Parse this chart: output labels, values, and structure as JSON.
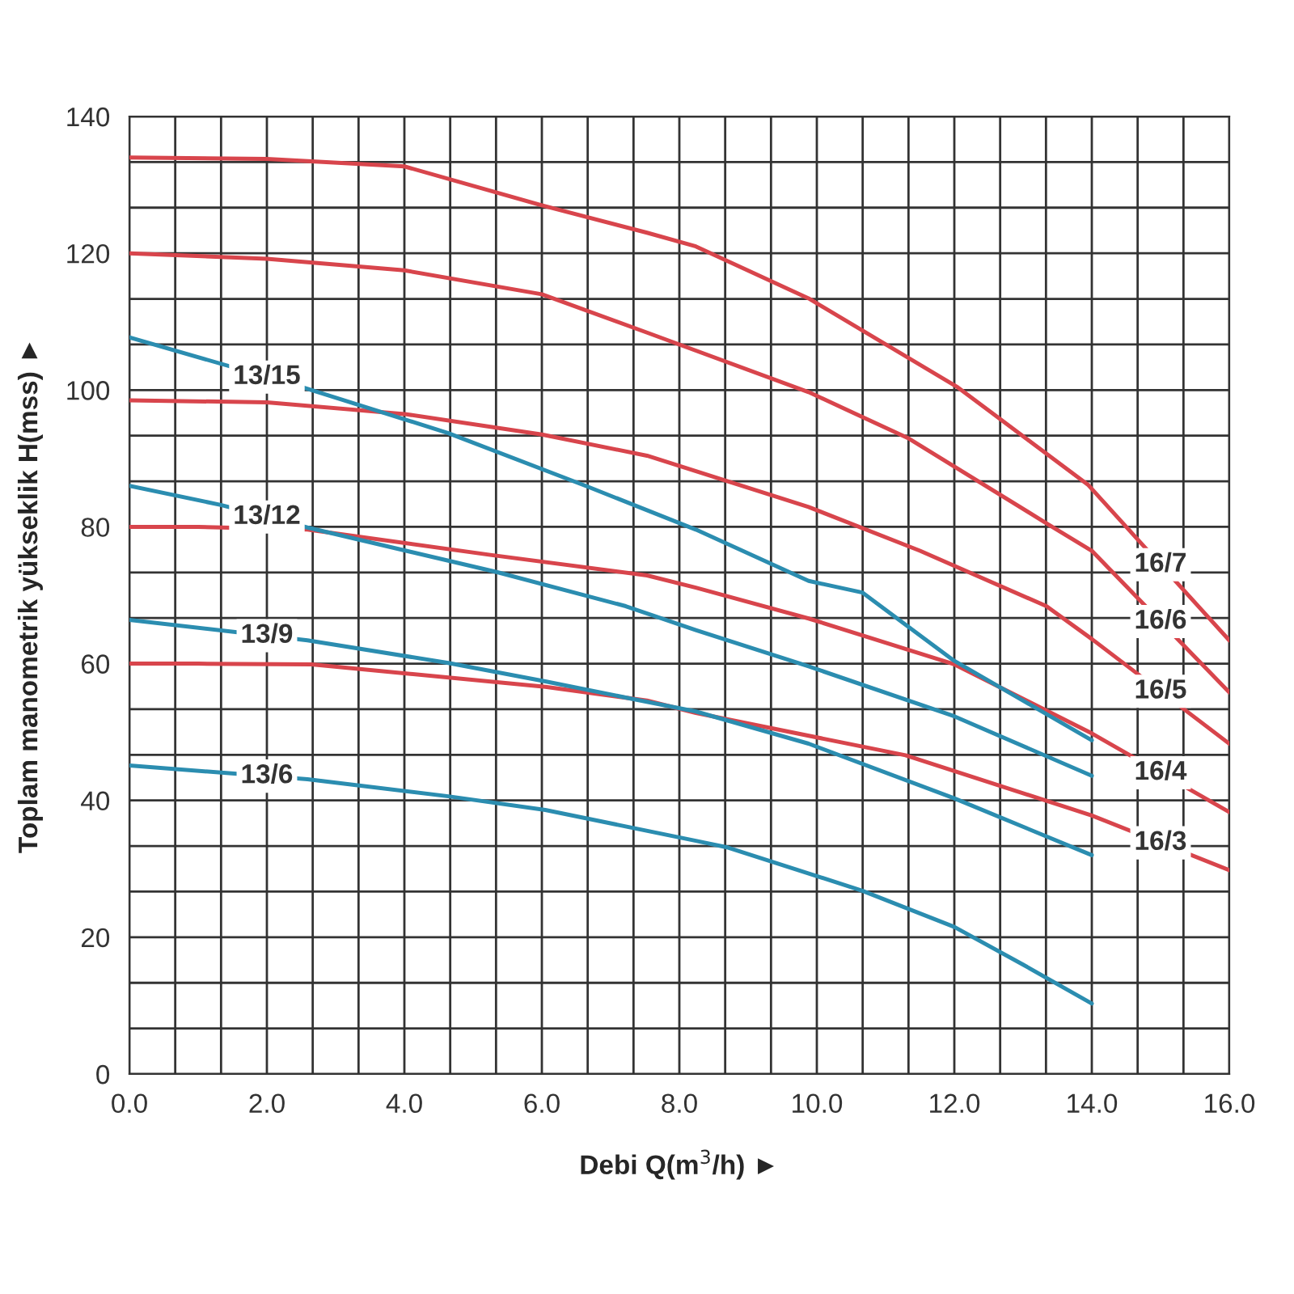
{
  "chart_data": {
    "type": "line",
    "xlabel": "Debi Q(m$^{3}$/h) ►",
    "ylabel": "Toplam manometrik yükseklik H(mss) ►",
    "xlim": [
      0,
      16
    ],
    "ylim": [
      0,
      140
    ],
    "xticks": [
      {
        "value": 0,
        "label": "0.0"
      },
      {
        "value": 2,
        "label": "2.0"
      },
      {
        "value": 4,
        "label": "4.0"
      },
      {
        "value": 6,
        "label": "6.0"
      },
      {
        "value": 8,
        "label": "8.0"
      },
      {
        "value": 10,
        "label": "10.0"
      },
      {
        "value": 12,
        "label": "12.0"
      },
      {
        "value": 14,
        "label": "14.0"
      },
      {
        "value": 16,
        "label": "16.0"
      }
    ],
    "yticks": [
      0,
      20,
      40,
      60,
      80,
      100,
      120,
      140
    ],
    "grid": true,
    "marker": "none",
    "line_style": "solid",
    "legend": false,
    "series": [
      {
        "name": "16/7",
        "color": "#d8454c",
        "x": [
          0,
          2,
          4,
          6,
          7.53,
          8.24,
          9.88,
          12.05,
          13.95,
          16
        ],
        "values": [
          134,
          133.8,
          132.7,
          127,
          123,
          121,
          113.4,
          100.4,
          86.1,
          63.4
        ]
      },
      {
        "name": "16/6",
        "color": "#d8454c",
        "x": [
          0,
          2,
          4,
          6,
          7.53,
          9.88,
          11.34,
          13.36,
          14,
          16
        ],
        "values": [
          120,
          119.2,
          117.5,
          114,
          108.4,
          99.7,
          92.9,
          80.4,
          76.5,
          55.8
        ]
      },
      {
        "name": "16/5",
        "color": "#d8454c",
        "x": [
          0,
          2,
          4,
          6,
          7.53,
          9.88,
          11.5,
          13.34,
          14,
          16
        ],
        "values": [
          98.5,
          98.2,
          96.5,
          93.5,
          90.4,
          82.9,
          76.5,
          68.4,
          63.6,
          48.3
        ]
      },
      {
        "name": "16/4",
        "color": "#d8454c",
        "x": [
          0,
          1,
          2.59,
          5.25,
          7.53,
          8.24,
          9.88,
          12,
          14,
          16
        ],
        "values": [
          80,
          80,
          79.6,
          75.9,
          72.9,
          71.1,
          66.6,
          59.9,
          49.8,
          38.3
        ]
      },
      {
        "name": "16/3",
        "color": "#d8454c",
        "x": [
          0,
          1,
          2.65,
          6.05,
          7.53,
          8.24,
          11.29,
          14,
          16
        ],
        "values": [
          60,
          60,
          59.9,
          56.6,
          54.6,
          52.8,
          46.6,
          37.8,
          29.8
        ]
      },
      {
        "name": "13/15",
        "color": "#2b8db0",
        "x": [
          0,
          2.52,
          4.64,
          6.66,
          8.24,
          9.88,
          10.66,
          12,
          14
        ],
        "values": [
          107.7,
          100.4,
          93.7,
          85.9,
          79.6,
          72.1,
          70.4,
          60.4,
          48.8
        ]
      },
      {
        "name": "13/12",
        "color": "#2b8db0",
        "x": [
          0,
          1.33,
          2.59,
          5.34,
          7.22,
          8.24,
          9.88,
          12,
          14
        ],
        "values": [
          86,
          83.2,
          79.9,
          73.4,
          68.4,
          64.9,
          59.6,
          52.3,
          43.6
        ]
      },
      {
        "name": "13/9",
        "color": "#2b8db0",
        "x": [
          0,
          2.59,
          4.64,
          6.05,
          7.29,
          8.24,
          9.88,
          12,
          14
        ],
        "values": [
          66.4,
          63.4,
          60.1,
          57.4,
          54.9,
          53,
          48.3,
          40.3,
          32
        ]
      },
      {
        "name": "13/6",
        "color": "#2b8db0",
        "x": [
          0,
          2.59,
          4.64,
          6.05,
          8.24,
          8.71,
          10.66,
          12,
          13,
          14
        ],
        "values": [
          45.1,
          43.1,
          40.6,
          38.6,
          34.1,
          33.1,
          26.8,
          21.5,
          16,
          10.3
        ]
      }
    ]
  }
}
